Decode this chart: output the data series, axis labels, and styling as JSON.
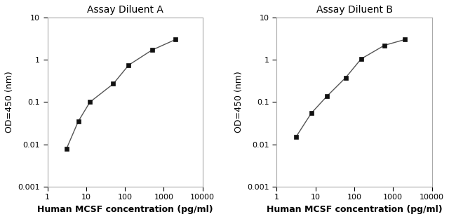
{
  "panel_A": {
    "title": "Assay Diluent A",
    "x": [
      3.125,
      6.25,
      12.5,
      50,
      125,
      500,
      2000
    ],
    "y": [
      0.008,
      0.035,
      0.1,
      0.27,
      0.75,
      1.7,
      3.0
    ],
    "xlabel": "Human MCSF concentration (pg/ml)",
    "ylabel": "OD=450 (nm)"
  },
  "panel_B": {
    "title": "Assay Diluent B",
    "x": [
      3.125,
      7.8,
      20,
      60,
      150,
      600,
      2000
    ],
    "y": [
      0.015,
      0.055,
      0.14,
      0.38,
      1.05,
      2.2,
      3.0
    ],
    "xlabel": "Human MCSF concentration (pg/ml)",
    "ylabel": "OD=450 (nm)"
  },
  "line_color": "#555555",
  "marker_color": "#111111",
  "bg_color": "#ffffff",
  "xlim": [
    1,
    10000
  ],
  "ylim": [
    0.001,
    10
  ],
  "title_fontsize": 10,
  "label_fontsize": 9,
  "tick_fontsize": 8
}
